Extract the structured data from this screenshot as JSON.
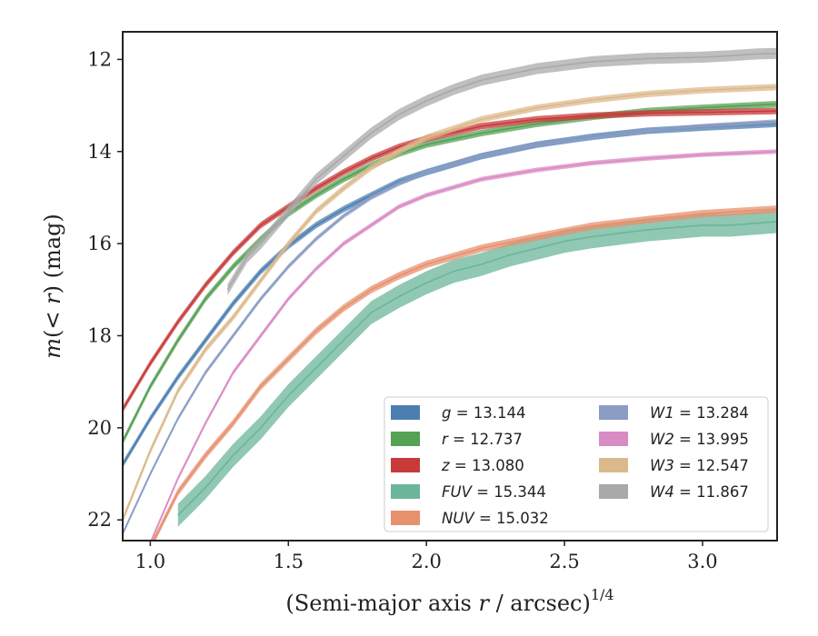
{
  "chart_data": {
    "type": "line",
    "xlabel": "(Semi-major axis r / arcsec)",
    "xlabel_exponent": "1/4",
    "ylabel": "m(< r) (mag)",
    "xlim": [
      0.9,
      3.27
    ],
    "ylim": [
      22.45,
      11.4
    ],
    "y_inverted": true,
    "x_ticks": [
      "1.0",
      "1.5",
      "2.0",
      "2.5",
      "3.0"
    ],
    "y_ticks": [
      "12",
      "14",
      "16",
      "18",
      "20",
      "22"
    ],
    "grid": false,
    "legend_position": "lower-right",
    "series": [
      {
        "name": "g = 13.144",
        "var": "g",
        "value": "13.144",
        "color": "#4c7fb0",
        "band": 0.07,
        "x": [
          0.9,
          1.0,
          1.1,
          1.2,
          1.3,
          1.4,
          1.5,
          1.6,
          1.7,
          1.8,
          1.9,
          2.0,
          2.2,
          2.4,
          2.6,
          2.8,
          3.0,
          3.27
        ],
        "y": [
          20.8,
          19.8,
          18.9,
          18.1,
          17.3,
          16.6,
          16.05,
          15.6,
          15.25,
          14.95,
          14.65,
          14.45,
          14.1,
          13.85,
          13.68,
          13.55,
          13.48,
          13.4
        ]
      },
      {
        "name": "r = 12.737",
        "var": "r",
        "value": "12.737",
        "color": "#55a155",
        "band": 0.07,
        "x": [
          0.9,
          1.0,
          1.1,
          1.2,
          1.3,
          1.4,
          1.5,
          1.6,
          1.7,
          1.8,
          1.9,
          2.0,
          2.2,
          2.4,
          2.6,
          2.8,
          3.0,
          3.27
        ],
        "y": [
          20.3,
          19.1,
          18.1,
          17.2,
          16.5,
          15.9,
          15.35,
          14.95,
          14.6,
          14.3,
          14.05,
          13.85,
          13.6,
          13.4,
          13.25,
          13.12,
          13.05,
          12.97
        ]
      },
      {
        "name": "z = 13.080",
        "var": "z",
        "value": "13.080",
        "color": "#c83a3a",
        "band": 0.07,
        "x": [
          0.9,
          1.0,
          1.1,
          1.2,
          1.3,
          1.4,
          1.5,
          1.6,
          1.7,
          1.8,
          1.9,
          2.0,
          2.2,
          2.4,
          2.6,
          2.8,
          3.0,
          3.27
        ],
        "y": [
          19.6,
          18.6,
          17.7,
          16.9,
          16.2,
          15.6,
          15.2,
          14.8,
          14.45,
          14.15,
          13.9,
          13.72,
          13.45,
          13.3,
          13.22,
          13.17,
          13.15,
          13.12
        ]
      },
      {
        "name": "FUV = 15.344",
        "var": "FUV",
        "value": "15.344",
        "color": "#6bb59a",
        "band": 0.25,
        "x": [
          1.1,
          1.2,
          1.3,
          1.4,
          1.5,
          1.6,
          1.7,
          1.8,
          1.9,
          2.0,
          2.1,
          2.2,
          2.3,
          2.4,
          2.5,
          2.6,
          2.8,
          3.0,
          3.1,
          3.27
        ],
        "y": [
          21.9,
          21.3,
          20.6,
          20.0,
          19.3,
          18.7,
          18.1,
          17.5,
          17.15,
          16.85,
          16.6,
          16.45,
          16.25,
          16.1,
          15.95,
          15.85,
          15.7,
          15.6,
          15.6,
          15.52
        ]
      },
      {
        "name": "NUV = 15.032",
        "var": "NUV",
        "value": "15.032",
        "color": "#e7906e",
        "band": 0.08,
        "x": [
          1.0,
          1.1,
          1.2,
          1.3,
          1.4,
          1.5,
          1.6,
          1.7,
          1.8,
          1.9,
          2.0,
          2.2,
          2.4,
          2.6,
          2.8,
          3.0,
          3.27
        ],
        "y": [
          22.6,
          21.4,
          20.6,
          19.9,
          19.1,
          18.5,
          17.9,
          17.4,
          17.0,
          16.7,
          16.45,
          16.1,
          15.85,
          15.62,
          15.48,
          15.35,
          15.25
        ]
      },
      {
        "name": "W1 = 13.284",
        "var": "W1",
        "value": "13.284",
        "color": "#8a9cc4",
        "band": 0.05,
        "x": [
          0.9,
          1.0,
          1.1,
          1.2,
          1.3,
          1.4,
          1.5,
          1.6,
          1.7,
          1.8,
          1.9,
          2.0,
          2.2,
          2.4,
          2.6,
          2.8,
          3.0,
          3.27
        ],
        "y": [
          22.3,
          21.0,
          19.8,
          18.8,
          18.0,
          17.2,
          16.5,
          15.9,
          15.4,
          15.0,
          14.7,
          14.45,
          14.1,
          13.85,
          13.7,
          13.55,
          13.45,
          13.35
        ]
      },
      {
        "name": "W2 = 13.995",
        "var": "W2",
        "value": "13.995",
        "color": "#d98bc4",
        "band": 0.05,
        "x": [
          1.0,
          1.1,
          1.2,
          1.3,
          1.4,
          1.5,
          1.6,
          1.7,
          1.8,
          1.9,
          2.0,
          2.2,
          2.4,
          2.6,
          2.8,
          3.0,
          3.27
        ],
        "y": [
          22.5,
          21.1,
          19.9,
          18.8,
          18.0,
          17.2,
          16.55,
          16.0,
          15.6,
          15.2,
          14.95,
          14.6,
          14.4,
          14.25,
          14.15,
          14.07,
          14.0
        ]
      },
      {
        "name": "W3 = 12.547",
        "var": "W3",
        "value": "12.547",
        "color": "#dcb98b",
        "band": 0.07,
        "x": [
          0.9,
          1.0,
          1.1,
          1.2,
          1.3,
          1.4,
          1.5,
          1.6,
          1.7,
          1.8,
          1.9,
          2.0,
          2.2,
          2.4,
          2.6,
          2.8,
          3.0,
          3.27
        ],
        "y": [
          22.0,
          20.5,
          19.2,
          18.3,
          17.6,
          16.8,
          16.0,
          15.3,
          14.8,
          14.35,
          14.0,
          13.7,
          13.3,
          13.05,
          12.88,
          12.75,
          12.67,
          12.6
        ]
      },
      {
        "name": "W4 = 11.867",
        "var": "W4",
        "value": "11.867",
        "color": "#a9a9a9",
        "band": 0.12,
        "x": [
          1.28,
          1.35,
          1.4,
          1.5,
          1.6,
          1.7,
          1.8,
          1.9,
          2.0,
          2.1,
          2.2,
          2.4,
          2.6,
          2.8,
          3.0,
          3.1,
          3.2,
          3.27
        ],
        "y": [
          17.0,
          16.3,
          16.0,
          15.3,
          14.6,
          14.1,
          13.6,
          13.2,
          12.9,
          12.65,
          12.45,
          12.2,
          12.05,
          11.98,
          11.95,
          11.92,
          11.88,
          11.87
        ]
      }
    ]
  }
}
